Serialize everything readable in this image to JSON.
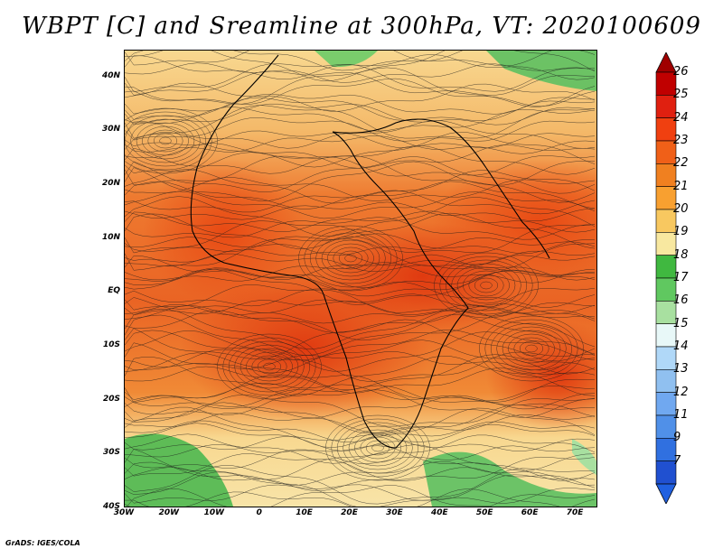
{
  "title": "WBPT [C] and Sreamline at 300hPa, VT: 2020100609",
  "credit": "GrADS: IGES/COLA",
  "map": {
    "field": "WBPT",
    "units": "C",
    "level": "300hPa",
    "valid_time": "2020100609",
    "lon_range": [
      -30,
      75
    ],
    "lat_range": [
      -40,
      45
    ],
    "lat_ticks": [
      {
        "value": 40,
        "label": "40N"
      },
      {
        "value": 30,
        "label": "30N"
      },
      {
        "value": 20,
        "label": "20N"
      },
      {
        "value": 10,
        "label": "10N"
      },
      {
        "value": 0,
        "label": "EQ"
      },
      {
        "value": -10,
        "label": "10S"
      },
      {
        "value": -20,
        "label": "20S"
      },
      {
        "value": -30,
        "label": "30S"
      },
      {
        "value": -40,
        "label": "40S"
      }
    ],
    "lon_ticks": [
      {
        "value": -30,
        "label": "30W"
      },
      {
        "value": -20,
        "label": "20W"
      },
      {
        "value": -10,
        "label": "10W"
      },
      {
        "value": 0,
        "label": "0"
      },
      {
        "value": 10,
        "label": "10E"
      },
      {
        "value": 20,
        "label": "20E"
      },
      {
        "value": 30,
        "label": "30E"
      },
      {
        "value": 40,
        "label": "40E"
      },
      {
        "value": 50,
        "label": "50E"
      },
      {
        "value": 60,
        "label": "60E"
      },
      {
        "value": 70,
        "label": "70E"
      }
    ]
  },
  "colorbar": {
    "levels": [
      "26",
      "25",
      "24",
      "23",
      "22",
      "21",
      "20",
      "19",
      "18",
      "17",
      "16",
      "15",
      "14",
      "13",
      "12",
      "11",
      "9",
      "7"
    ],
    "colors": [
      "#c00000",
      "#e02010",
      "#f04010",
      "#f06018",
      "#f08020",
      "#f8a030",
      "#f8c860",
      "#f8e8a0",
      "#40b840",
      "#60c860",
      "#a8e0a0",
      "#e8f8f8",
      "#b0d8f8",
      "#90c0f0",
      "#70a8f0",
      "#5090e8",
      "#3070e0",
      "#2050d0"
    ],
    "top_color": "#a00000",
    "bottom_color": "#2060e0"
  }
}
